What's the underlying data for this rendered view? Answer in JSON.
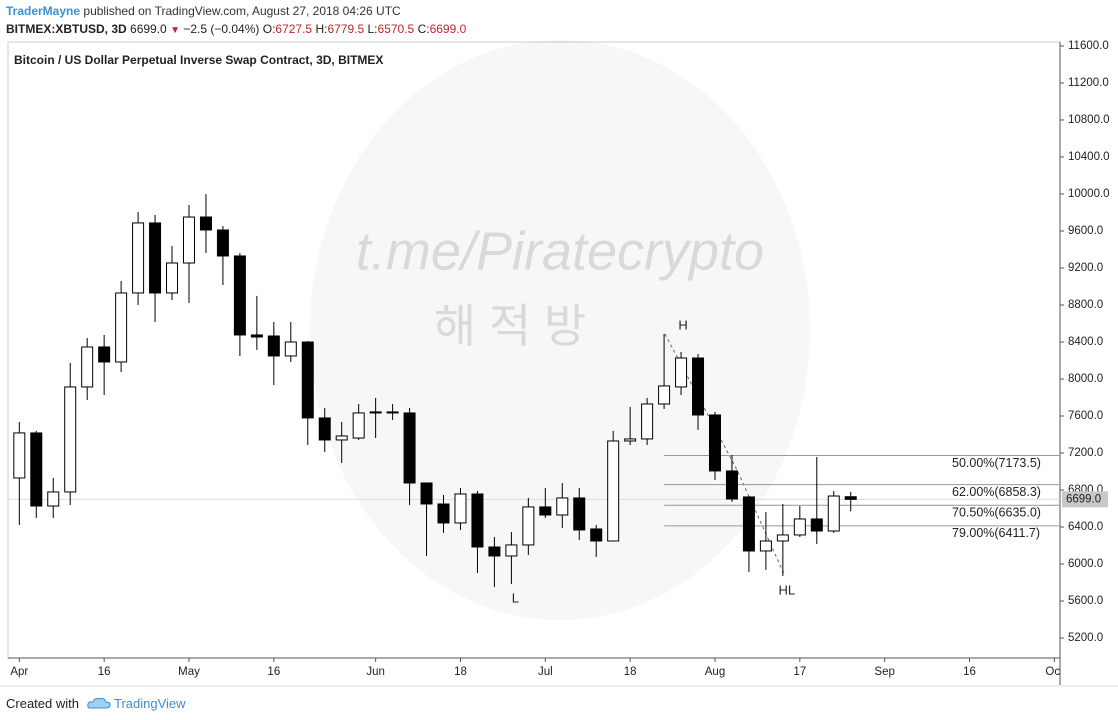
{
  "header": {
    "author": "TraderMayne",
    "published": "published on TradingView.com, August 27, 2018 04:26 UTC",
    "symbol": "BITMEX:XBTUSD, 3D",
    "last": "6699.0",
    "change_arrow": "▼",
    "change": "−2.5 (−0.04%)",
    "ohlc": [
      {
        "label": "O:",
        "value": "6727.5"
      },
      {
        "label": "H:",
        "value": "6779.5"
      },
      {
        "label": "L:",
        "value": "6570.5"
      },
      {
        "label": "C:",
        "value": "6699.0"
      }
    ]
  },
  "watermark": {
    "url": "t.me/Piratecrypto",
    "korean": "해 적 방"
  },
  "footer": {
    "created": "Created with",
    "brand": "TradingView"
  },
  "chart_data": {
    "type": "candlestick",
    "title": "Bitcoin / US Dollar Perpetual Inverse Swap Contract, 3D, BITMEX",
    "x": [
      "Apr 1",
      "Apr 4",
      "Apr 7",
      "Apr 10",
      "Apr 13",
      "Apr 16",
      "Apr 19",
      "Apr 22",
      "Apr 25",
      "Apr 28",
      "May 1",
      "May 4",
      "May 7",
      "May 10",
      "May 13",
      "May 16",
      "May 19",
      "May 22",
      "May 25",
      "May 28",
      "May 31",
      "Jun 3",
      "Jun 6",
      "Jun 9",
      "Jun 12",
      "Jun 15",
      "Jun 18",
      "Jun 21",
      "Jun 24",
      "Jun 27",
      "Jun 30",
      "Jul 3",
      "Jul 6",
      "Jul 9",
      "Jul 12",
      "Jul 15",
      "Jul 18",
      "Jul 21",
      "Jul 24",
      "Jul 27",
      "Jul 30",
      "Aug 2",
      "Aug 5",
      "Aug 8",
      "Aug 11",
      "Aug 14",
      "Aug 17",
      "Aug 20",
      "Aug 23",
      "Aug 26"
    ],
    "open": [
      6930,
      7417,
      6627,
      6779,
      7914,
      8346,
      8184,
      8930,
      9687,
      8930,
      9254,
      9751,
      9611,
      9330,
      8476,
      8465,
      8249,
      8400,
      7579,
      7341,
      7362,
      7633,
      7644,
      7633,
      6876,
      6649,
      6444,
      6757,
      6184,
      6087,
      6206,
      6617,
      6530,
      6714,
      6379,
      6249,
      7330,
      7352,
      7730,
      7914,
      8227,
      7611,
      7006,
      6725,
      6141,
      6249,
      6314,
      6487,
      6357,
      6727.5
    ],
    "high": [
      7535,
      7439,
      6930,
      8173,
      8443,
      8476,
      9060,
      9806,
      9773,
      9438,
      9881,
      10000,
      9654,
      9362,
      8898,
      8616,
      8616,
      8411,
      7687,
      7535,
      7730,
      7795,
      7730,
      7687,
      6876,
      6746,
      6822,
      6789,
      6292,
      6346,
      6714,
      6822,
      6876,
      6822,
      6422,
      7439,
      7698,
      7795,
      8487,
      8292,
      8271,
      7644,
      7179,
      6735,
      6562,
      6649,
      6627,
      7157,
      6789,
      6779.5
    ],
    "low": [
      6422,
      6498,
      6498,
      6638,
      7773,
      7827,
      8076,
      8800,
      8616,
      8854,
      8822,
      9362,
      9016,
      8249,
      8314,
      7935,
      8184,
      7287,
      7211,
      7092,
      7341,
      7362,
      7557,
      6638,
      6087,
      6336,
      6368,
      5903,
      5752,
      5784,
      6098,
      6498,
      6390,
      6260,
      6076,
      6249,
      7287,
      7287,
      7676,
      7827,
      7449,
      6908,
      6671,
      5914,
      5936,
      5871,
      6292,
      6217,
      6336,
      6570.5
    ],
    "close": [
      7417,
      6627,
      6779,
      7914,
      8346,
      8184,
      8930,
      9687,
      8930,
      9254,
      9751,
      9611,
      9330,
      8476,
      8454,
      8249,
      8400,
      7579,
      7341,
      7384,
      7633,
      7644,
      7633,
      6876,
      6649,
      6444,
      6757,
      6184,
      6087,
      6206,
      6617,
      6530,
      6714,
      6368,
      6249,
      7330,
      7352,
      7730,
      7925,
      8227,
      7611,
      7006,
      6703,
      6141,
      6249,
      6314,
      6487,
      6357,
      6735,
      6699
    ],
    "up_color": "#ffffff",
    "down_color": "#000000",
    "wick_color": "#000000",
    "xlim": [
      "Mar 30",
      "Oct 2"
    ],
    "xticks": [
      {
        "value": "Apr 1",
        "label": "Apr"
      },
      {
        "value": "Apr 16",
        "label": "16"
      },
      {
        "value": "May 1",
        "label": "May"
      },
      {
        "value": "May 16",
        "label": "16"
      },
      {
        "value": "Jun 3",
        "label": "Jun"
      },
      {
        "value": "Jun 18",
        "label": "18"
      },
      {
        "value": "Jul 3",
        "label": "Jul"
      },
      {
        "value": "Jul 18",
        "label": "18"
      },
      {
        "value": "Aug 2",
        "label": "Aug"
      },
      {
        "value": "Aug 17",
        "label": "17"
      },
      {
        "value": "Sep 1",
        "label": "Sep"
      },
      {
        "value": "Sep 16",
        "label": "16"
      },
      {
        "value": "Oct 1",
        "label": "Oct"
      }
    ],
    "ylim": [
      4984,
      11643
    ],
    "yticks": [
      {
        "value": 5200,
        "label": "5200.0"
      },
      {
        "value": 5600,
        "label": "5600.0"
      },
      {
        "value": 6000,
        "label": "6000.0"
      },
      {
        "value": 6400,
        "label": "6400.0"
      },
      {
        "value": 6800,
        "label": "6800.0"
      },
      {
        "value": 7200,
        "label": "7200.0"
      },
      {
        "value": 7600,
        "label": "7600.0"
      },
      {
        "value": 8000,
        "label": "8000.0"
      },
      {
        "value": 8400,
        "label": "8400.0"
      },
      {
        "value": 8800,
        "label": "8800.0"
      },
      {
        "value": 9200,
        "label": "9200.0"
      },
      {
        "value": 9600,
        "label": "9600.0"
      },
      {
        "value": 10000,
        "label": "10000.0"
      },
      {
        "value": 10400,
        "label": "10400.0"
      },
      {
        "value": 10800,
        "label": "10800.0"
      },
      {
        "value": 11200,
        "label": "11200.0"
      },
      {
        "value": 11600,
        "label": "11600.0"
      }
    ],
    "last_price": {
      "value": 6699,
      "label": "6699.0"
    },
    "fib_start": "Jul 24",
    "fib_levels": [
      {
        "value": 7173.5,
        "label": "50.00%(7173.5)"
      },
      {
        "value": 6858.3,
        "label": "62.00%(6858.3)"
      },
      {
        "value": 6635.0,
        "label": "70.50%(6635.0)"
      },
      {
        "value": 6411.7,
        "label": "79.00%(6411.7)"
      }
    ],
    "annotations": [
      {
        "text": "H",
        "x": "Jul 27"
      },
      {
        "text": "L",
        "x": "Jun 27"
      },
      {
        "text": "HL",
        "x": "Aug 14"
      }
    ]
  }
}
